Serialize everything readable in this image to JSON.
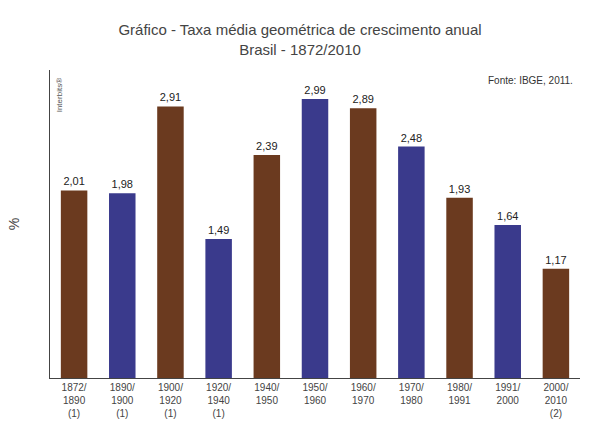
{
  "chart_data": {
    "type": "bar",
    "title": "Gráfico - Taxa média geométrica de crescimento anual",
    "subtitle": "Brasil - 1872/2010",
    "ylabel": "%",
    "annotations": [
      "Fonte: IBGE, 2011.",
      "Interbits®"
    ],
    "categories": [
      "1872/\n1890\n(1)",
      "1890/\n1900\n(1)",
      "1900/\n1920\n(1)",
      "1920/\n1940\n(1)",
      "1940/\n1950",
      "1950/\n1960",
      "1960/\n1970",
      "1970/\n1980",
      "1980/\n1991",
      "1991/\n2000",
      "2000/\n2010\n(2)"
    ],
    "values": [
      2.01,
      1.98,
      2.91,
      1.49,
      2.39,
      2.99,
      2.89,
      2.48,
      1.93,
      1.64,
      1.17
    ],
    "value_labels": [
      "2,01",
      "1,98",
      "2,91",
      "1,49",
      "2,39",
      "2,99",
      "2,89",
      "2,48",
      "1,93",
      "1,64",
      "1,17"
    ],
    "colors": [
      "#6B3A1F",
      "#3A3A8C",
      "#6B3A1F",
      "#3A3A8C",
      "#6B3A1F",
      "#3A3A8C",
      "#6B3A1F",
      "#3A3A8C",
      "#6B3A1F",
      "#3A3A8C",
      "#6B3A1F"
    ],
    "ylim": [
      0,
      3.3
    ],
    "data_labels": true,
    "tick_labels": "x",
    "grid": false
  }
}
